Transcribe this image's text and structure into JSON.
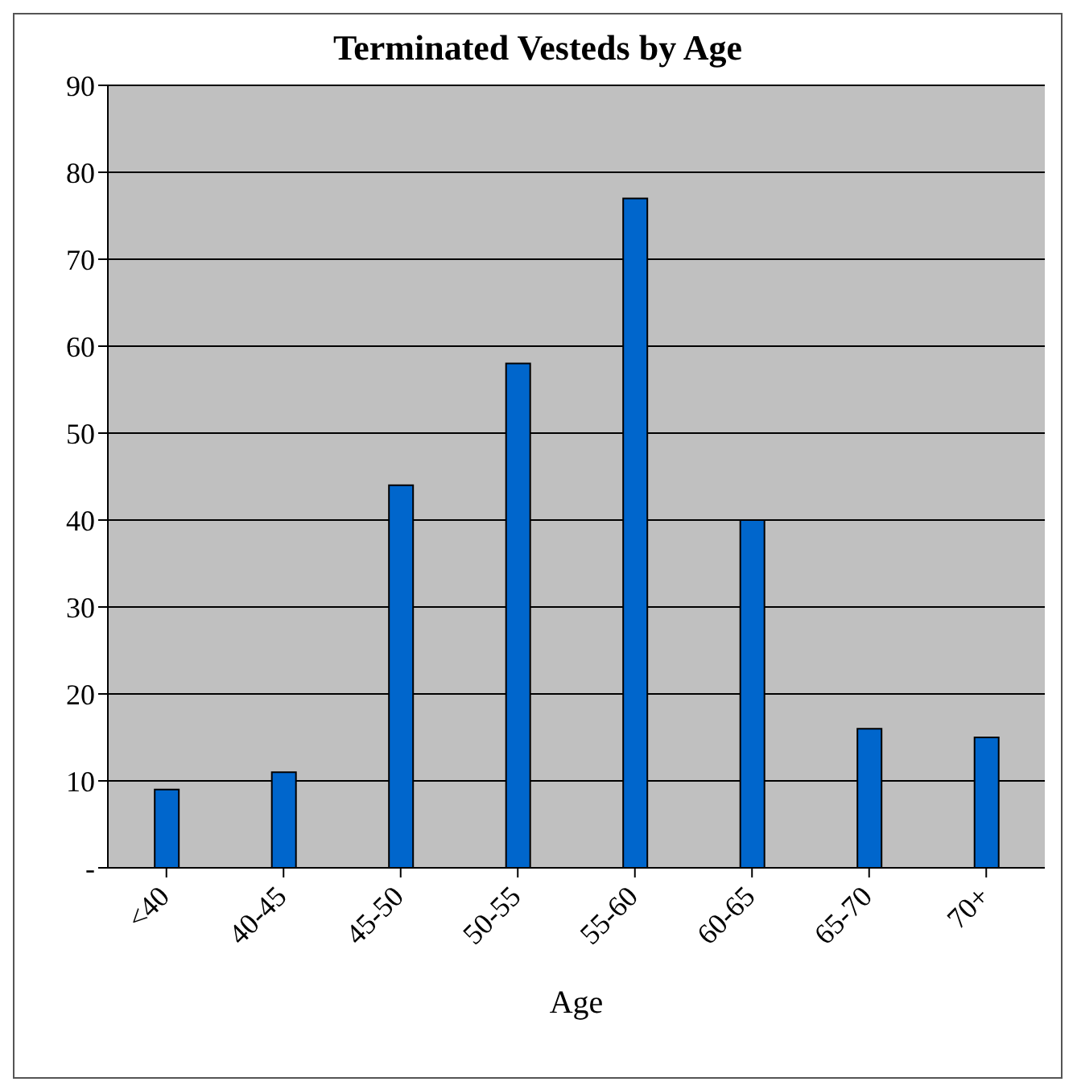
{
  "chart_data": {
    "type": "bar",
    "title": "Terminated Vesteds by Age",
    "xlabel": "Age",
    "categories": [
      "<40",
      "40-45",
      "45-50",
      "50-55",
      "55-60",
      "60-65",
      "65-70",
      "70+"
    ],
    "values": [
      9,
      11,
      44,
      58,
      77,
      40,
      16,
      15
    ],
    "color": "#0066cc",
    "ylim": [
      0,
      90
    ],
    "yticks": [
      {
        "value": 0,
        "label": "-"
      },
      10,
      20,
      30,
      40,
      50,
      60,
      70,
      80,
      90
    ],
    "grid": "y",
    "legend": false
  }
}
